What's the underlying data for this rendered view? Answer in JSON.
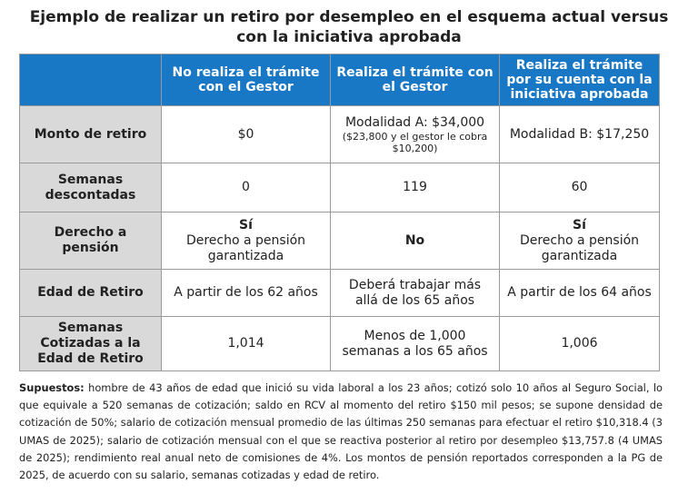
{
  "title": "Ejemplo de realizar un retiro por desempleo en el esquema actual versus con la iniciativa aprobada",
  "columns": [
    "No realiza el trámite con el Gestor",
    "Realiza el trámite con el Gestor",
    "Realiza el trámite por su cuenta con la iniciativa aprobada"
  ],
  "rows": {
    "monto": {
      "label": "Monto de retiro",
      "c1": "$0",
      "c2_main": "Modalidad A: $34,000",
      "c2_note": "($23,800 y el gestor le cobra $10,200)",
      "c3": "Modalidad B: $17,250"
    },
    "semanas": {
      "label": "Semanas descontadas",
      "c1": "0",
      "c2": "119",
      "c3": "60"
    },
    "derecho": {
      "label": "Derecho a pensión",
      "c1_bold": "Sí",
      "c1_text": "Derecho a pensión garantizada",
      "c2_bold": "No",
      "c3_bold": "Sí",
      "c3_text": "Derecho a pensión garantizada"
    },
    "edad": {
      "label": "Edad de Retiro",
      "c1": "A partir de los 62 años",
      "c2": "Deberá trabajar más allá de los 65 años",
      "c3": "A partir de los 64 años"
    },
    "cotizadas": {
      "label": "Semanas Cotizadas a la Edad de Retiro",
      "c1": "1,014",
      "c2": "Menos de 1,000 semanas a los 65 años",
      "c3": "1,006"
    }
  },
  "notes": {
    "label": "Supuestos:",
    "text": "hombre de 43 años de edad que inició su vida laboral a los 23 años; cotizó solo 10 años al Seguro Social, lo que equivale a 520 semanas de cotización; saldo en RCV al momento del retiro $150 mil pesos; se supone densidad de cotización de 50%; salario de cotización mensual promedio de las últimas 250 semanas para efectuar el retiro $10,318.4 (3 UMAS de 2025); salario de cotización mensual con el que se reactiva posterior al retiro por desempleo $13,757.8 (4 UMAS de 2025); rendimiento real anual neto de comisiones de 4%. Los montos de pensión reportados corresponden a la PG de 2025, de acuerdo con su salario, semanas cotizadas y edad de retiro."
  },
  "colors": {
    "header_bg": "#1878c6",
    "row_label_bg": "#d9d9d9",
    "border": "#9a9a9a"
  }
}
